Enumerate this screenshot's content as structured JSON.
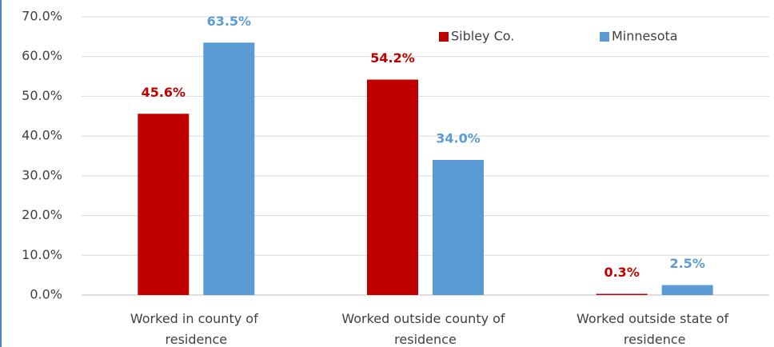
{
  "chart_data": {
    "type": "bar",
    "categories": [
      "Worked in county of residence",
      "Worked outside county of residence",
      "Worked outside state of residence"
    ],
    "series": [
      {
        "name": "Sibley Co.",
        "color": "#c00000",
        "values": [
          45.6,
          54.2,
          0.3
        ],
        "value_labels": [
          "45.6%",
          "54.2%",
          "0.3%"
        ]
      },
      {
        "name": "Minnesota",
        "color": "#5b9bd5",
        "values": [
          63.5,
          34.0,
          2.5
        ],
        "value_labels": [
          "63.5%",
          "34.0%",
          "2.5%"
        ]
      }
    ],
    "ylim": [
      0,
      70
    ],
    "yticks": [
      {
        "value": 0,
        "label": "0.0%"
      },
      {
        "value": 10,
        "label": "10.0%"
      },
      {
        "value": 20,
        "label": "20.0%"
      },
      {
        "value": 30,
        "label": "30.0%"
      },
      {
        "value": 40,
        "label": "40.0%"
      },
      {
        "value": 50,
        "label": "50.0%"
      },
      {
        "value": 60,
        "label": "60.0%"
      },
      {
        "value": 70,
        "label": "70.0%"
      }
    ],
    "grid": true,
    "legend": "top-right"
  }
}
